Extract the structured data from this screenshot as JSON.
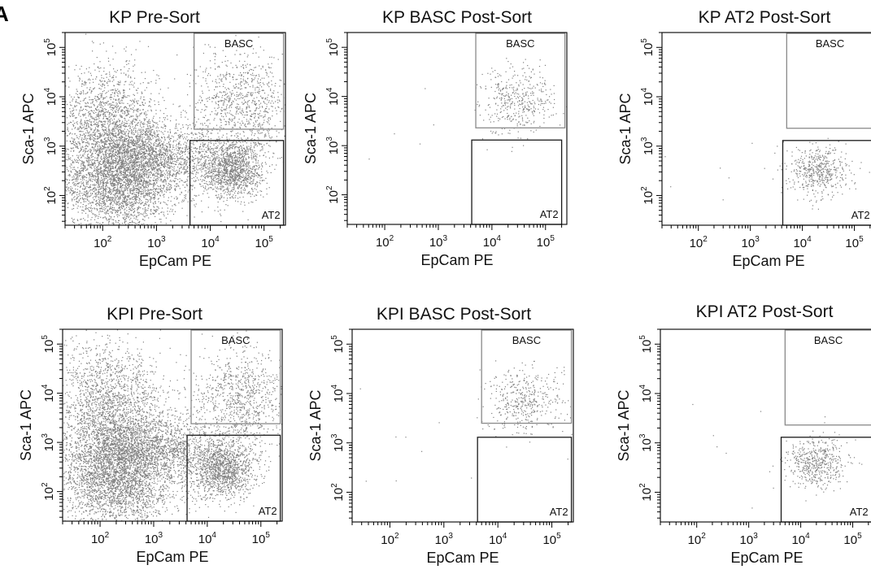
{
  "panel_letter": "A",
  "chart_data": [
    {
      "type": "scatter",
      "title": "KP Pre-Sort",
      "xlabel": "EpCam PE",
      "ylabel": "Sca-1 APC",
      "x_scale": "log",
      "y_scale": "log",
      "x_ticks": [
        {
          "value": 100,
          "label": "10",
          "exp": "2"
        },
        {
          "value": 1000,
          "label": "10",
          "exp": "3"
        },
        {
          "value": 10000,
          "label": "10",
          "exp": "4"
        },
        {
          "value": 100000,
          "label": "10",
          "exp": "5"
        }
      ],
      "y_ticks": [
        {
          "value": 100,
          "label": "10",
          "exp": "2"
        },
        {
          "value": 1000,
          "label": "10",
          "exp": "3"
        },
        {
          "value": 10000,
          "label": "10",
          "exp": "4"
        },
        {
          "value": 100000,
          "label": "10",
          "exp": "5"
        }
      ],
      "xlim": [
        20,
        250000
      ],
      "ylim": [
        25,
        200000
      ],
      "gates": [
        {
          "name": "BASC",
          "x": [
            5000,
            230000
          ],
          "y": [
            2200,
            200000
          ],
          "color": "#8a8a8a"
        },
        {
          "name": "AT2",
          "x": [
            4200,
            230000
          ],
          "y": [
            25,
            1300
          ],
          "color": "#1a1a1a"
        }
      ],
      "density": "high",
      "populations": [
        {
          "cx": 200,
          "cy": 200,
          "sx": 0.55,
          "sy": 0.55,
          "n": 3200
        },
        {
          "cx": 120,
          "cy": 3000,
          "sx": 0.45,
          "sy": 0.6,
          "n": 1600
        },
        {
          "cx": 25000,
          "cy": 350,
          "sx": 0.3,
          "sy": 0.3,
          "n": 1400
        },
        {
          "cx": 40000,
          "cy": 8000,
          "sx": 0.45,
          "sy": 0.5,
          "n": 900
        },
        {
          "cx": 1000,
          "cy": 600,
          "sx": 0.6,
          "sy": 0.35,
          "n": 1500
        }
      ]
    },
    {
      "type": "scatter",
      "title": "KP BASC Post-Sort",
      "xlabel": "EpCam PE",
      "ylabel": "Sca-1 APC",
      "x_scale": "log",
      "y_scale": "log",
      "x_ticks": [
        {
          "value": 100,
          "label": "10",
          "exp": "2"
        },
        {
          "value": 1000,
          "label": "10",
          "exp": "3"
        },
        {
          "value": 10000,
          "label": "10",
          "exp": "4"
        },
        {
          "value": 100000,
          "label": "10",
          "exp": "5"
        }
      ],
      "y_ticks": [
        {
          "value": 100,
          "label": "10",
          "exp": "2"
        },
        {
          "value": 1000,
          "label": "10",
          "exp": "3"
        },
        {
          "value": 10000,
          "label": "10",
          "exp": "4"
        },
        {
          "value": 100000,
          "label": "10",
          "exp": "5"
        }
      ],
      "xlim": [
        20,
        250000
      ],
      "ylim": [
        25,
        200000
      ],
      "gates": [
        {
          "name": "BASC",
          "x": [
            5000,
            230000
          ],
          "y": [
            2300,
            200000
          ],
          "color": "#8a8a8a"
        },
        {
          "name": "AT2",
          "x": [
            4200,
            200000
          ],
          "y": [
            25,
            1300
          ],
          "color": "#1a1a1a"
        }
      ],
      "density": "low",
      "populations": [
        {
          "cx": 30000,
          "cy": 9000,
          "sx": 0.35,
          "sy": 0.35,
          "n": 420
        },
        {
          "cx": 500,
          "cy": 800,
          "sx": 1.0,
          "sy": 0.8,
          "n": 10
        }
      ]
    },
    {
      "type": "scatter",
      "title": "KP AT2 Post-Sort",
      "xlabel": "EpCam PE",
      "ylabel": "Sca-1 APC",
      "x_scale": "log",
      "y_scale": "log",
      "x_ticks": [
        {
          "value": 100,
          "label": "10",
          "exp": "2"
        },
        {
          "value": 1000,
          "label": "10",
          "exp": "3"
        },
        {
          "value": 10000,
          "label": "10",
          "exp": "4"
        },
        {
          "value": 100000,
          "label": "10",
          "exp": "5"
        }
      ],
      "y_ticks": [
        {
          "value": 100,
          "label": "10",
          "exp": "2"
        },
        {
          "value": 1000,
          "label": "10",
          "exp": "3"
        },
        {
          "value": 10000,
          "label": "10",
          "exp": "4"
        },
        {
          "value": 100000,
          "label": "10",
          "exp": "5"
        }
      ],
      "xlim": [
        20,
        250000
      ],
      "ylim": [
        25,
        200000
      ],
      "gates": [
        {
          "name": "BASC",
          "x": [
            5000,
            230000
          ],
          "y": [
            2300,
            200000
          ],
          "color": "#8a8a8a"
        },
        {
          "name": "AT2",
          "x": [
            4200,
            230000
          ],
          "y": [
            25,
            1300
          ],
          "color": "#1a1a1a"
        }
      ],
      "density": "low",
      "populations": [
        {
          "cx": 20000,
          "cy": 320,
          "sx": 0.28,
          "sy": 0.25,
          "n": 500
        },
        {
          "cx": 500,
          "cy": 300,
          "sx": 1.0,
          "sy": 0.6,
          "n": 10
        }
      ]
    },
    {
      "type": "scatter",
      "title": "KPI Pre-Sort",
      "xlabel": "EpCam PE",
      "ylabel": "Sca-1 APC",
      "x_scale": "log",
      "y_scale": "log",
      "x_ticks": [
        {
          "value": 100,
          "label": "10",
          "exp": "2"
        },
        {
          "value": 1000,
          "label": "10",
          "exp": "3"
        },
        {
          "value": 10000,
          "label": "10",
          "exp": "4"
        },
        {
          "value": 100000,
          "label": "10",
          "exp": "5"
        }
      ],
      "y_ticks": [
        {
          "value": 100,
          "label": "10",
          "exp": "2"
        },
        {
          "value": 1000,
          "label": "10",
          "exp": "3"
        },
        {
          "value": 10000,
          "label": "10",
          "exp": "4"
        },
        {
          "value": 100000,
          "label": "10",
          "exp": "5"
        }
      ],
      "xlim": [
        20,
        250000
      ],
      "ylim": [
        25,
        200000
      ],
      "gates": [
        {
          "name": "BASC",
          "x": [
            5000,
            230000
          ],
          "y": [
            2400,
            200000
          ],
          "color": "#8a8a8a"
        },
        {
          "name": "AT2",
          "x": [
            4200,
            230000
          ],
          "y": [
            25,
            1400
          ],
          "color": "#1a1a1a"
        }
      ],
      "density": "high",
      "populations": [
        {
          "cx": 200,
          "cy": 200,
          "sx": 0.55,
          "sy": 0.55,
          "n": 3200
        },
        {
          "cx": 150,
          "cy": 5000,
          "sx": 0.5,
          "sy": 0.65,
          "n": 2000
        },
        {
          "cx": 20000,
          "cy": 300,
          "sx": 0.3,
          "sy": 0.3,
          "n": 1300
        },
        {
          "cx": 40000,
          "cy": 8000,
          "sx": 0.45,
          "sy": 0.5,
          "n": 900
        },
        {
          "cx": 1000,
          "cy": 700,
          "sx": 0.6,
          "sy": 0.35,
          "n": 1500
        }
      ]
    },
    {
      "type": "scatter",
      "title": "KPI BASC Post-Sort",
      "xlabel": "EpCam PE",
      "ylabel": "Sca-1 APC",
      "x_scale": "log",
      "y_scale": "log",
      "x_ticks": [
        {
          "value": 100,
          "label": "10",
          "exp": "2"
        },
        {
          "value": 1000,
          "label": "10",
          "exp": "3"
        },
        {
          "value": 10000,
          "label": "10",
          "exp": "4"
        },
        {
          "value": 100000,
          "label": "10",
          "exp": "5"
        }
      ],
      "y_ticks": [
        {
          "value": 100,
          "label": "10",
          "exp": "2"
        },
        {
          "value": 1000,
          "label": "10",
          "exp": "3"
        },
        {
          "value": 10000,
          "label": "10",
          "exp": "4"
        },
        {
          "value": 100000,
          "label": "10",
          "exp": "5"
        }
      ],
      "xlim": [
        20,
        250000
      ],
      "ylim": [
        25,
        200000
      ],
      "gates": [
        {
          "name": "BASC",
          "x": [
            5000,
            230000
          ],
          "y": [
            2500,
            200000
          ],
          "color": "#8a8a8a"
        },
        {
          "name": "AT2",
          "x": [
            4200,
            230000
          ],
          "y": [
            25,
            1300
          ],
          "color": "#1a1a1a"
        }
      ],
      "density": "low",
      "populations": [
        {
          "cx": 30000,
          "cy": 7000,
          "sx": 0.35,
          "sy": 0.35,
          "n": 420
        },
        {
          "cx": 500,
          "cy": 1000,
          "sx": 1.0,
          "sy": 0.8,
          "n": 10
        }
      ]
    },
    {
      "type": "scatter",
      "title": "KPI AT2 Post-Sort",
      "xlabel": "EpCam PE",
      "ylabel": "Sca-1 APC",
      "x_scale": "log",
      "y_scale": "log",
      "x_ticks": [
        {
          "value": 100,
          "label": "10",
          "exp": "2"
        },
        {
          "value": 1000,
          "label": "10",
          "exp": "3"
        },
        {
          "value": 10000,
          "label": "10",
          "exp": "4"
        },
        {
          "value": 100000,
          "label": "10",
          "exp": "5"
        }
      ],
      "y_ticks": [
        {
          "value": 100,
          "label": "10",
          "exp": "2"
        },
        {
          "value": 1000,
          "label": "10",
          "exp": "3"
        },
        {
          "value": 10000,
          "label": "10",
          "exp": "4"
        },
        {
          "value": 100000,
          "label": "10",
          "exp": "5"
        }
      ],
      "xlim": [
        20,
        250000
      ],
      "ylim": [
        25,
        200000
      ],
      "gates": [
        {
          "name": "BASC",
          "x": [
            5000,
            230000
          ],
          "y": [
            2300,
            200000
          ],
          "color": "#8a8a8a"
        },
        {
          "name": "AT2",
          "x": [
            4200,
            230000
          ],
          "y": [
            25,
            1300
          ],
          "color": "#1a1a1a"
        }
      ],
      "density": "low",
      "populations": [
        {
          "cx": 20000,
          "cy": 400,
          "sx": 0.28,
          "sy": 0.25,
          "n": 500
        },
        {
          "cx": 500,
          "cy": 400,
          "sx": 1.0,
          "sy": 0.6,
          "n": 10
        }
      ]
    }
  ]
}
